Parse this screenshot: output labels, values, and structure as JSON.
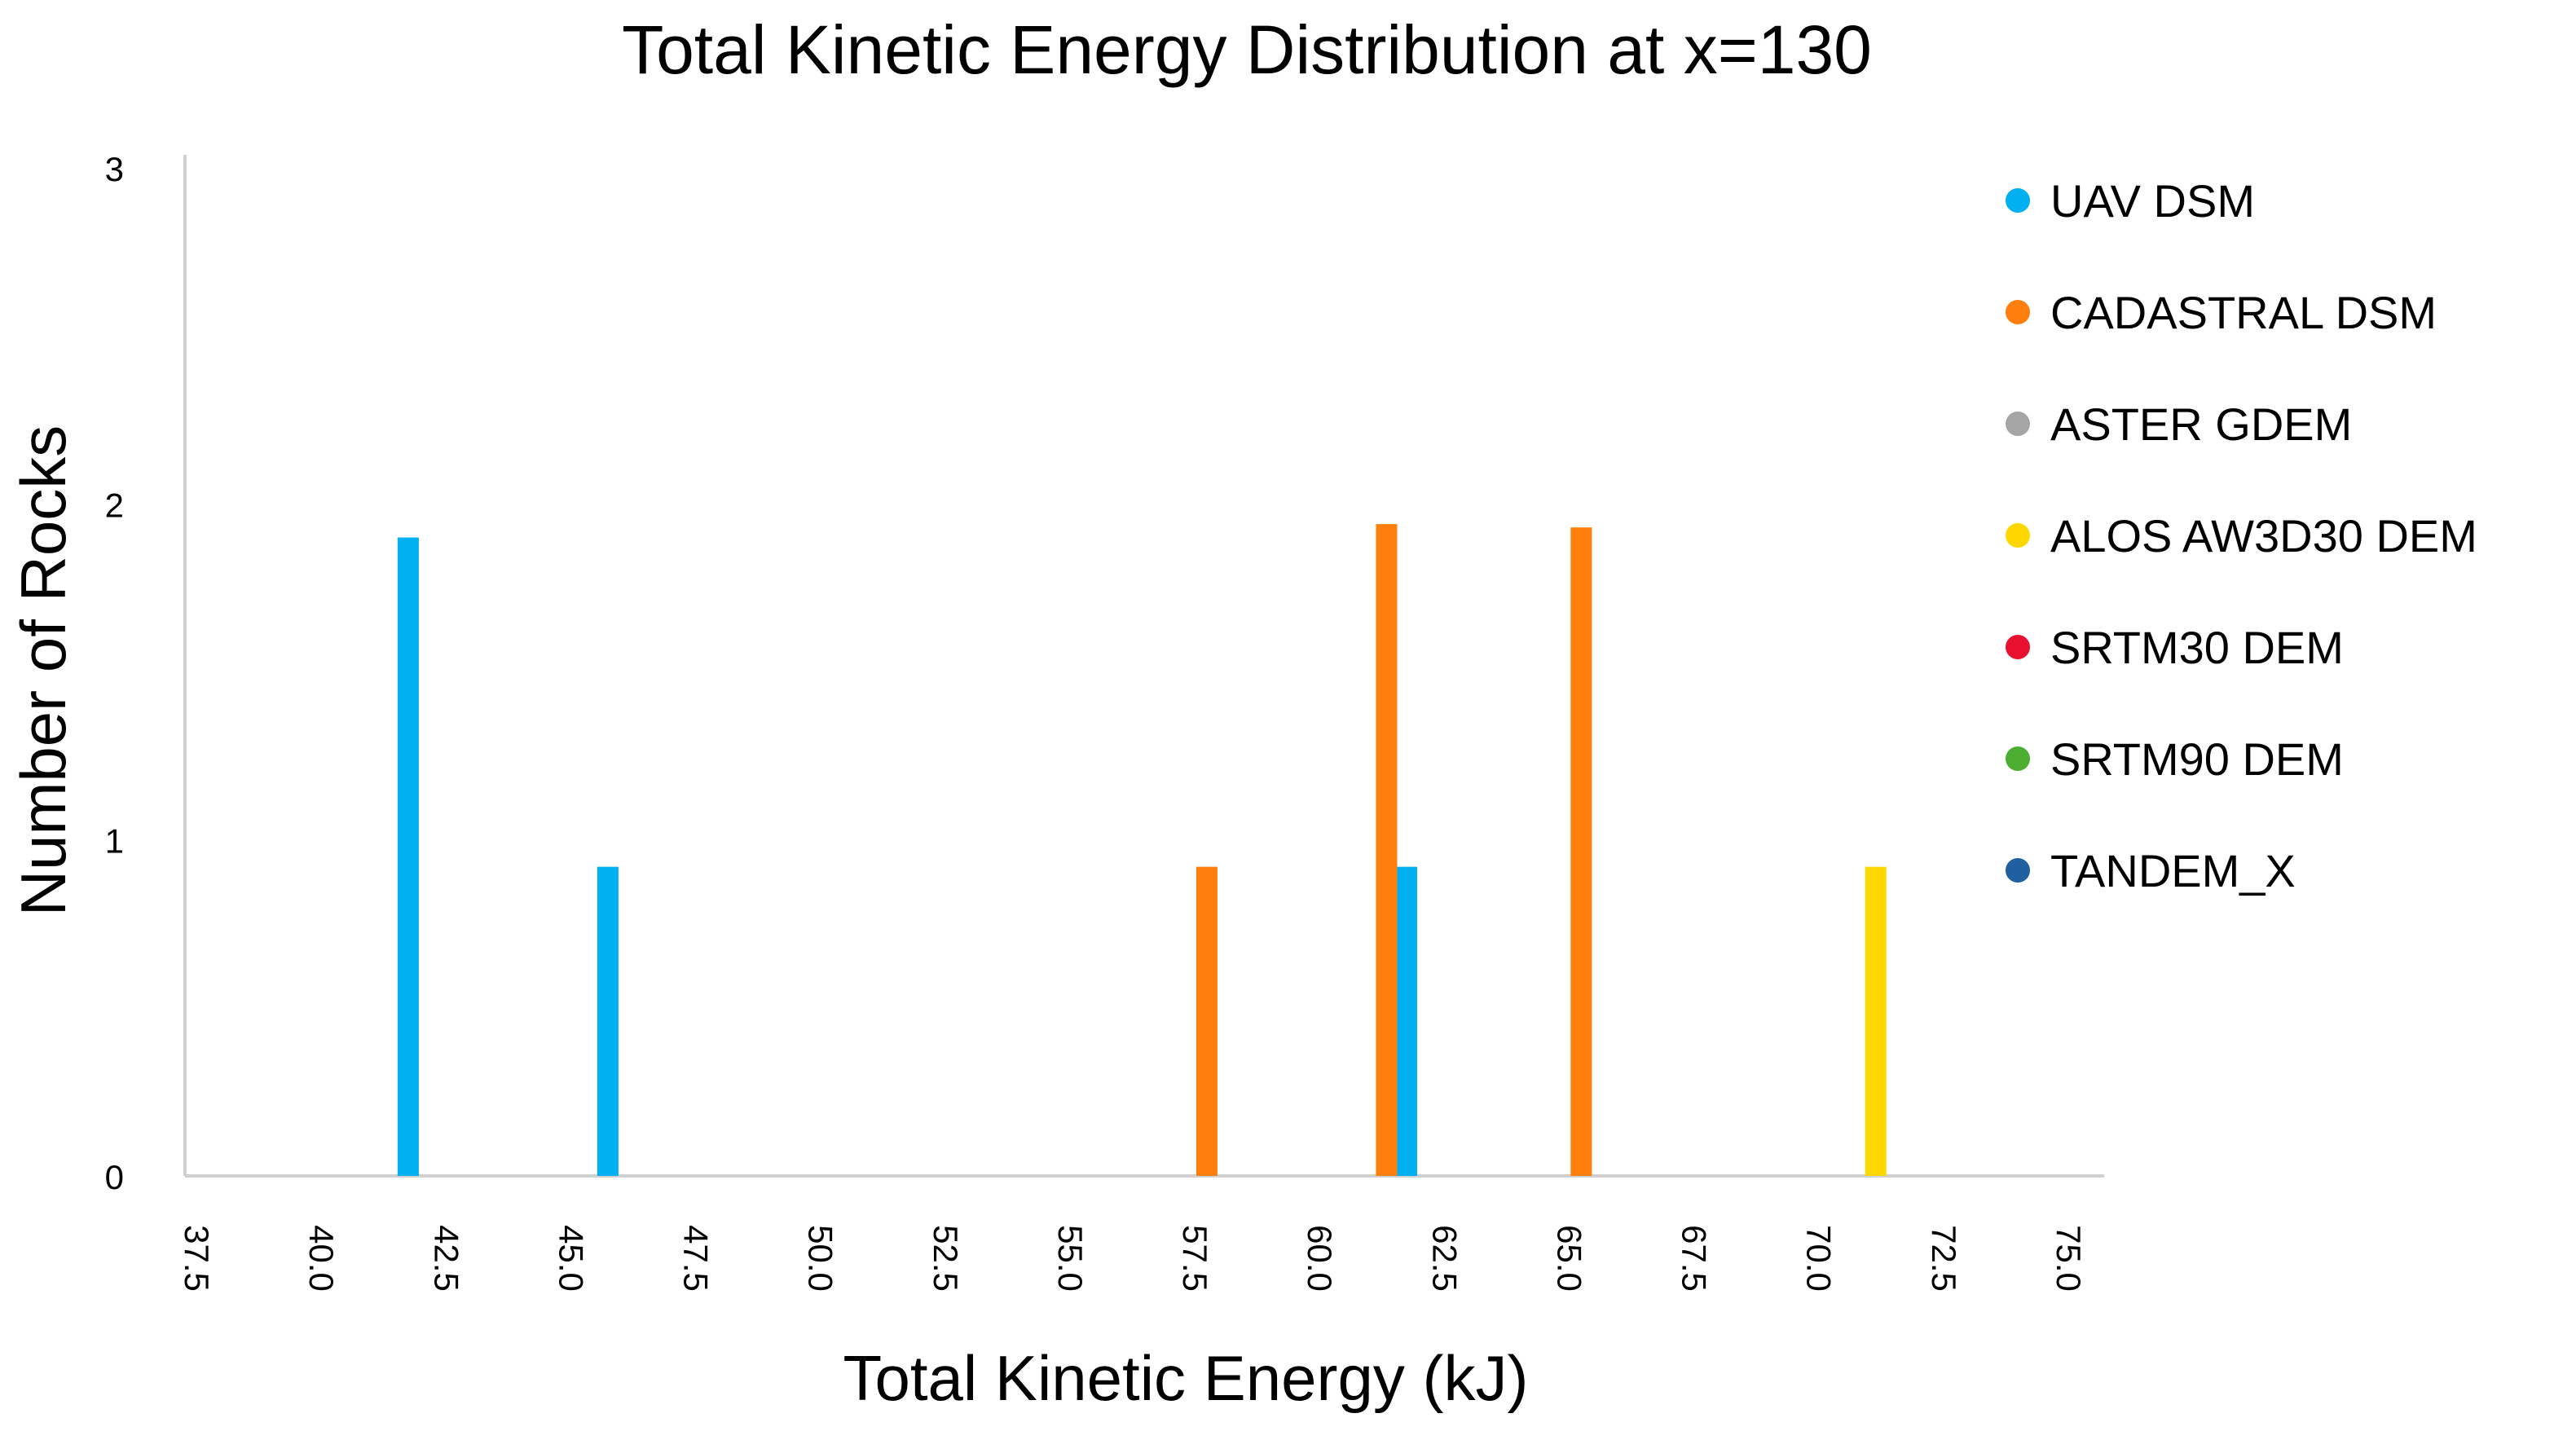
{
  "chart_data": {
    "type": "bar",
    "title": "Total Kinetic Energy Distribution at x=130",
    "xlabel": "Total Kinetic Energy (kJ)",
    "ylabel": "Number of Rocks",
    "ylim": [
      0,
      3
    ],
    "yticks": [
      "0",
      "1",
      "2",
      "3"
    ],
    "xlim": [
      37.5,
      75.0
    ],
    "xticks": [
      "37.5",
      "40.0",
      "42.5",
      "45.0",
      "47.5",
      "50.0",
      "52.5",
      "55.0",
      "57.5",
      "60.0",
      "62.5",
      "65.0",
      "67.5",
      "70.0",
      "72.5",
      "75.0"
    ],
    "grid": false,
    "legend_position": "right",
    "series": [
      {
        "name": "UAV DSM",
        "color": "#00B0F0",
        "points": [
          {
            "x": 42.2,
            "y": 1.9
          },
          {
            "x": 46.2,
            "y": 0.92
          },
          {
            "x": 62.2,
            "y": 0.92
          }
        ]
      },
      {
        "name": "CADASTRAL DSM",
        "color": "#FF7F0E",
        "points": [
          {
            "x": 58.2,
            "y": 0.92
          },
          {
            "x": 61.8,
            "y": 1.94
          },
          {
            "x": 65.7,
            "y": 1.93
          }
        ]
      },
      {
        "name": "ASTER GDEM",
        "color": "#A5A5A5",
        "points": []
      },
      {
        "name": "ALOS AW3D30 DEM",
        "color": "#FFD700",
        "points": [
          {
            "x": 71.6,
            "y": 0.92
          }
        ]
      },
      {
        "name": "SRTM30 DEM",
        "color": "#E8102E",
        "points": []
      },
      {
        "name": "SRTM90 DEM",
        "color": "#4CAF32",
        "points": []
      },
      {
        "name": "TANDEM_X",
        "color": "#1F5FA0",
        "points": []
      }
    ]
  }
}
